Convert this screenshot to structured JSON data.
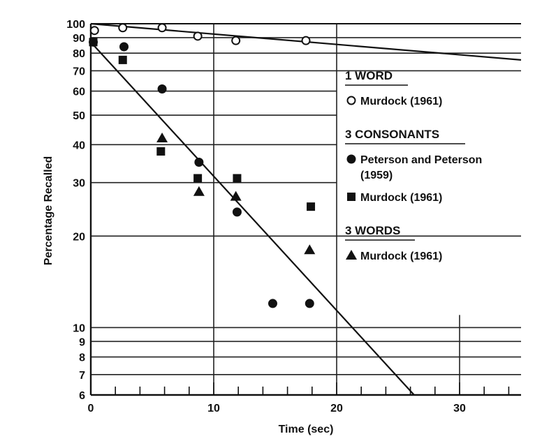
{
  "chart_data": {
    "type": "scatter",
    "xlabel": "Time (sec)",
    "ylabel": "Percentage Recalled",
    "xlim": [
      0,
      35
    ],
    "ylim": [
      6,
      100
    ],
    "y_scale": "log",
    "grid": true,
    "legend_placement": "right",
    "x_ticks": [
      "0",
      "10",
      "20",
      "30"
    ],
    "x_tick_values": [
      0,
      10,
      20,
      30
    ],
    "y_ticks": [
      "100",
      "90",
      "80",
      "70",
      "60",
      "50",
      "40",
      "30",
      "20",
      "10",
      "9",
      "8",
      "7",
      "6"
    ],
    "y_tick_values": [
      100,
      90,
      80,
      70,
      60,
      50,
      40,
      30,
      20,
      10,
      9,
      8,
      7,
      6
    ],
    "legend": {
      "groups": [
        {
          "heading": "1 WORD",
          "entries": [
            {
              "label": "Murdock (1961)",
              "marker": "open-circle",
              "series": 0
            }
          ]
        },
        {
          "heading": "3 CONSONANTS",
          "entries": [
            {
              "label": "Peterson and Peterson",
              "label2": "(1959)",
              "marker": "filled-circle",
              "series": 1
            },
            {
              "label": "Murdock (1961)",
              "marker": "filled-square",
              "series": 2
            }
          ]
        },
        {
          "heading": "3 WORDS",
          "entries": [
            {
              "label": "Murdock (1961)",
              "marker": "filled-triangle",
              "series": 3
            }
          ]
        }
      ]
    },
    "series": [
      {
        "marker": "open-circle",
        "x": [
          0.3,
          2.6,
          5.8,
          8.7,
          11.8,
          17.5
        ],
        "y": [
          95,
          97,
          97,
          91,
          88,
          88
        ]
      },
      {
        "marker": "filled-circle",
        "x": [
          0.2,
          2.7,
          5.8,
          8.8,
          11.9,
          14.8,
          17.8
        ],
        "y": [
          87,
          84,
          61,
          35,
          24,
          12,
          12
        ]
      },
      {
        "marker": "filled-square",
        "x": [
          0.2,
          2.6,
          5.7,
          8.7,
          11.9,
          17.9
        ],
        "y": [
          87,
          76,
          38,
          31,
          31,
          25
        ]
      },
      {
        "marker": "filled-triangle",
        "x": [
          5.8,
          8.8,
          11.8,
          17.8
        ],
        "y": [
          42,
          28,
          27,
          18
        ]
      }
    ],
    "trend_lines": [
      {
        "x": [
          0,
          35
        ],
        "y": [
          100,
          76
        ]
      },
      {
        "x": [
          0,
          26.3
        ],
        "y": [
          87,
          6
        ]
      }
    ]
  }
}
